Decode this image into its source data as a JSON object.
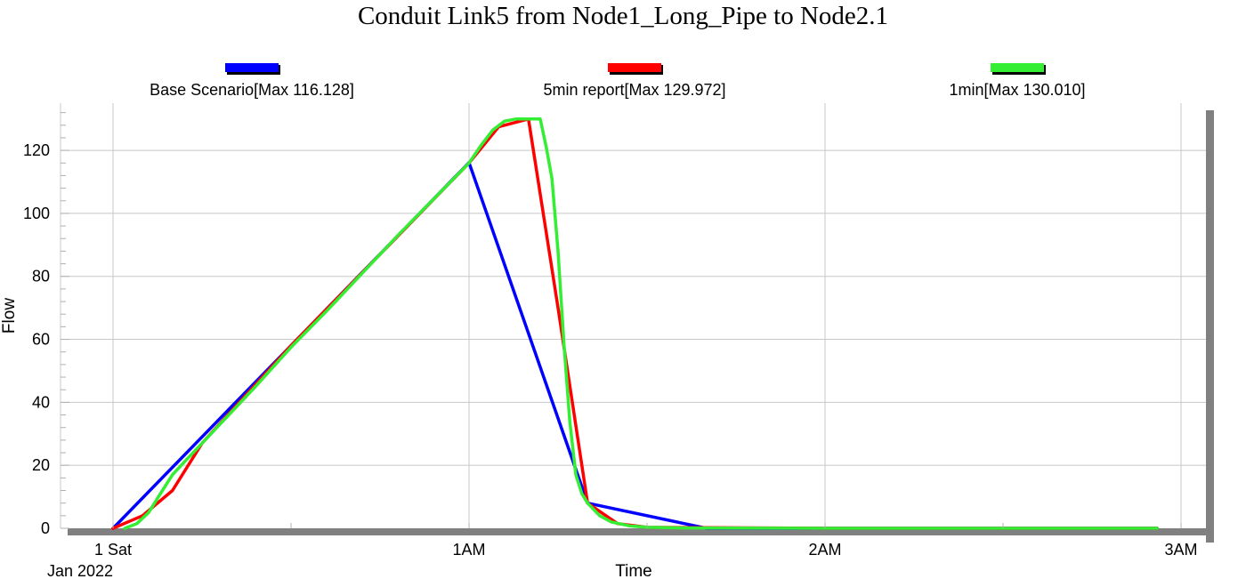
{
  "chart_data": {
    "type": "line",
    "title": "Conduit Link5 from Node1_Long_Pipe to Node2.1",
    "xlabel": "Time",
    "ylabel": "Flow",
    "x_unit": "hours from 1 Sat Jan 2022 00:00",
    "xlim": [
      -0.15,
      3.05
    ],
    "ylim": [
      0,
      135
    ],
    "x_ticks": [
      {
        "value": 0,
        "label": "1 Sat"
      },
      {
        "value": 1,
        "label": "1AM"
      },
      {
        "value": 2,
        "label": "2AM"
      },
      {
        "value": 3,
        "label": "3AM"
      }
    ],
    "x_sub_label": "Jan 2022",
    "y_ticks": [
      0,
      20,
      40,
      60,
      80,
      100,
      120
    ],
    "grid": true,
    "legend_placement": "top",
    "series": [
      {
        "name": "Base Scenario[Max 116.128]",
        "color": "#0000ff",
        "x": [
          0,
          0.5,
          1.0,
          1.333,
          1.667,
          2.0,
          2.5,
          2.933
        ],
        "y": [
          0,
          58,
          116.128,
          8,
          0,
          0,
          0,
          0
        ]
      },
      {
        "name": "5min report[Max 129.972]",
        "color": "#ff0000",
        "x": [
          0,
          0.083,
          0.167,
          0.25,
          0.5,
          0.75,
          1.0,
          1.083,
          1.167,
          1.25,
          1.333,
          1.417,
          1.5,
          2.0,
          2.5,
          2.933
        ],
        "y": [
          0,
          4,
          12,
          27,
          58,
          87,
          116,
          127.5,
          129.972,
          70,
          8,
          1.5,
          0.3,
          0,
          0,
          0
        ]
      },
      {
        "name": "1min[Max 130.010]",
        "color": "#33ee33",
        "x": [
          0.033,
          0.067,
          0.1,
          0.133,
          0.167,
          0.2,
          0.25,
          0.3,
          0.4,
          0.5,
          0.6,
          0.7,
          0.8,
          0.9,
          1.0,
          1.033,
          1.067,
          1.1,
          1.133,
          1.167,
          1.2,
          1.217,
          1.233,
          1.25,
          1.267,
          1.283,
          1.3,
          1.317,
          1.333,
          1.367,
          1.4,
          1.45,
          1.5,
          1.6,
          2.0,
          2.5,
          2.933
        ],
        "y": [
          0,
          1.5,
          5,
          11,
          17,
          21,
          27,
          33,
          45,
          57.5,
          69,
          81,
          93,
          104.5,
          116,
          121.5,
          126.5,
          129.3,
          130.01,
          130.0,
          130.0,
          121,
          111,
          88,
          58,
          34,
          17,
          11,
          8,
          4,
          2,
          0.8,
          0.3,
          0.1,
          0,
          0,
          0
        ]
      }
    ]
  }
}
